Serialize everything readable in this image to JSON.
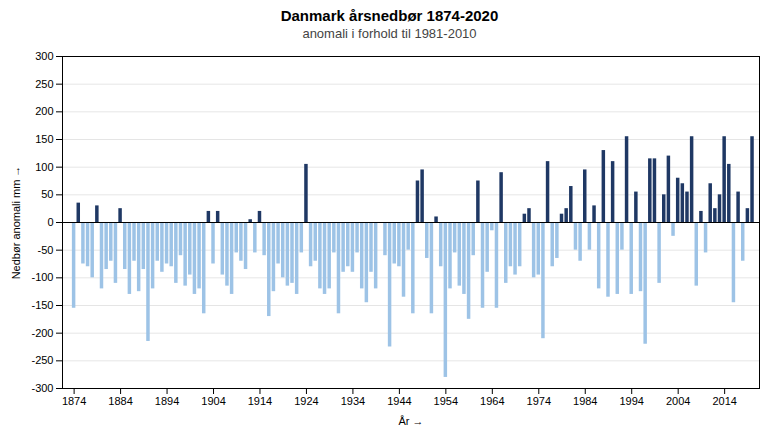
{
  "chart_data": {
    "type": "bar",
    "title": "Danmark årsnedbør 1874-2020",
    "subtitle": "anomali i forhold til 1981-2010",
    "xlabel": "År",
    "ylabel": "Nedbør anomali mm",
    "x": [
      1874,
      1875,
      1876,
      1877,
      1878,
      1879,
      1880,
      1881,
      1882,
      1883,
      1884,
      1885,
      1886,
      1887,
      1888,
      1889,
      1890,
      1891,
      1892,
      1893,
      1894,
      1895,
      1896,
      1897,
      1898,
      1899,
      1900,
      1901,
      1902,
      1903,
      1904,
      1905,
      1906,
      1907,
      1908,
      1909,
      1910,
      1911,
      1912,
      1913,
      1914,
      1915,
      1916,
      1917,
      1918,
      1919,
      1920,
      1921,
      1922,
      1923,
      1924,
      1925,
      1926,
      1927,
      1928,
      1929,
      1930,
      1931,
      1932,
      1933,
      1934,
      1935,
      1936,
      1937,
      1938,
      1939,
      1940,
      1941,
      1942,
      1943,
      1944,
      1945,
      1946,
      1947,
      1948,
      1949,
      1950,
      1951,
      1952,
      1953,
      1954,
      1955,
      1956,
      1957,
      1958,
      1959,
      1960,
      1961,
      1962,
      1963,
      1964,
      1965,
      1966,
      1967,
      1968,
      1969,
      1970,
      1971,
      1972,
      1973,
      1974,
      1975,
      1976,
      1977,
      1978,
      1979,
      1980,
      1981,
      1982,
      1983,
      1984,
      1985,
      1986,
      1987,
      1988,
      1989,
      1990,
      1991,
      1992,
      1993,
      1994,
      1995,
      1996,
      1997,
      1998,
      1999,
      2000,
      2001,
      2002,
      2003,
      2004,
      2005,
      2006,
      2007,
      2008,
      2009,
      2010,
      2011,
      2012,
      2013,
      2014,
      2015,
      2016,
      2017,
      2018,
      2019,
      2020
    ],
    "values": [
      -155,
      35,
      -75,
      -80,
      -100,
      30,
      -120,
      -85,
      -70,
      -110,
      25,
      -85,
      -130,
      -70,
      -125,
      -85,
      -215,
      -120,
      -70,
      -90,
      -75,
      -80,
      -110,
      -60,
      -115,
      -95,
      -130,
      -120,
      -165,
      20,
      -75,
      20,
      -95,
      -115,
      -130,
      -55,
      -70,
      -85,
      5,
      -55,
      20,
      -60,
      -170,
      -125,
      -75,
      -100,
      -115,
      -110,
      -130,
      -55,
      105,
      -80,
      -70,
      -120,
      -130,
      -120,
      -55,
      -165,
      -90,
      -80,
      -90,
      -55,
      -120,
      -145,
      -90,
      -120,
      0,
      -60,
      -225,
      -75,
      -80,
      -135,
      -50,
      -165,
      75,
      95,
      -65,
      -165,
      10,
      -80,
      -280,
      -120,
      -55,
      -115,
      -130,
      -175,
      -60,
      75,
      -155,
      -90,
      -15,
      -155,
      90,
      -110,
      -80,
      -95,
      -80,
      15,
      25,
      -100,
      -95,
      -210,
      110,
      -80,
      -65,
      15,
      25,
      65,
      -50,
      -70,
      95,
      -50,
      30,
      -120,
      130,
      -135,
      110,
      -130,
      -50,
      155,
      -130,
      55,
      -125,
      -220,
      115,
      115,
      -110,
      50,
      120,
      -25,
      80,
      70,
      55,
      155,
      -115,
      20,
      -55,
      70,
      25,
      50,
      155,
      105,
      -145,
      55,
      -70,
      25,
      155
    ],
    "colors": [
      "#9dc3e6",
      "#1f3864",
      "#9dc3e6",
      "#9dc3e6",
      "#9dc3e6",
      "#1f3864",
      "#9dc3e6",
      "#9dc3e6",
      "#9dc3e6",
      "#9dc3e6",
      "#1f3864",
      "#9dc3e6",
      "#9dc3e6",
      "#9dc3e6",
      "#9dc3e6",
      "#9dc3e6",
      "#9dc3e6",
      "#9dc3e6",
      "#9dc3e6",
      "#9dc3e6",
      "#9dc3e6",
      "#9dc3e6",
      "#9dc3e6",
      "#9dc3e6",
      "#9dc3e6",
      "#9dc3e6",
      "#9dc3e6",
      "#9dc3e6",
      "#9dc3e6",
      "#1f3864",
      "#9dc3e6",
      "#1f3864",
      "#9dc3e6",
      "#9dc3e6",
      "#9dc3e6",
      "#9dc3e6",
      "#9dc3e6",
      "#9dc3e6",
      "#1f3864",
      "#9dc3e6",
      "#1f3864",
      "#9dc3e6",
      "#9dc3e6",
      "#9dc3e6",
      "#9dc3e6",
      "#9dc3e6",
      "#9dc3e6",
      "#9dc3e6",
      "#9dc3e6",
      "#9dc3e6",
      "#1f3864",
      "#9dc3e6",
      "#9dc3e6",
      "#9dc3e6",
      "#9dc3e6",
      "#9dc3e6",
      "#9dc3e6",
      "#9dc3e6",
      "#9dc3e6",
      "#9dc3e6",
      "#9dc3e6",
      "#9dc3e6",
      "#9dc3e6",
      "#9dc3e6",
      "#9dc3e6",
      "#9dc3e6",
      "#1f3864",
      "#9dc3e6",
      "#9dc3e6",
      "#9dc3e6",
      "#9dc3e6",
      "#9dc3e6",
      "#9dc3e6",
      "#9dc3e6",
      "#1f3864",
      "#1f3864",
      "#9dc3e6",
      "#9dc3e6",
      "#1f3864",
      "#9dc3e6",
      "#9dc3e6",
      "#9dc3e6",
      "#9dc3e6",
      "#9dc3e6",
      "#9dc3e6",
      "#9dc3e6",
      "#9dc3e6",
      "#1f3864",
      "#9dc3e6",
      "#9dc3e6",
      "#9dc3e6",
      "#9dc3e6",
      "#1f3864",
      "#9dc3e6",
      "#9dc3e6",
      "#9dc3e6",
      "#9dc3e6",
      "#1f3864",
      "#1f3864",
      "#9dc3e6",
      "#9dc3e6",
      "#9dc3e6",
      "#1f3864",
      "#9dc3e6",
      "#9dc3e6",
      "#1f3864",
      "#1f3864",
      "#1f3864",
      "#9dc3e6",
      "#9dc3e6",
      "#1f3864",
      "#9dc3e6",
      "#1f3864",
      "#9dc3e6",
      "#1f3864",
      "#9dc3e6",
      "#1f3864",
      "#9dc3e6",
      "#9dc3e6",
      "#1f3864",
      "#9dc3e6",
      "#1f3864",
      "#9dc3e6",
      "#9dc3e6",
      "#1f3864",
      "#1f3864",
      "#9dc3e6",
      "#1f3864",
      "#1f3864",
      "#9dc3e6",
      "#1f3864",
      "#1f3864",
      "#1f3864",
      "#1f3864",
      "#9dc3e6",
      "#1f3864",
      "#9dc3e6",
      "#1f3864",
      "#1f3864",
      "#1f3864",
      "#1f3864",
      "#1f3864",
      "#9dc3e6",
      "#1f3864",
      "#9dc3e6",
      "#1f3864",
      "#1f3864"
    ],
    "xlim": [
      1871.5,
      2021.5
    ],
    "ylim": [
      -300,
      300
    ],
    "xticks": [
      1874,
      1884,
      1894,
      1904,
      1914,
      1924,
      1934,
      1944,
      1954,
      1964,
      1974,
      1984,
      1994,
      2004,
      2014
    ],
    "yticks": [
      -300,
      -250,
      -200,
      -150,
      -100,
      -50,
      0,
      50,
      100,
      150,
      200,
      250,
      300
    ],
    "grid": true
  }
}
